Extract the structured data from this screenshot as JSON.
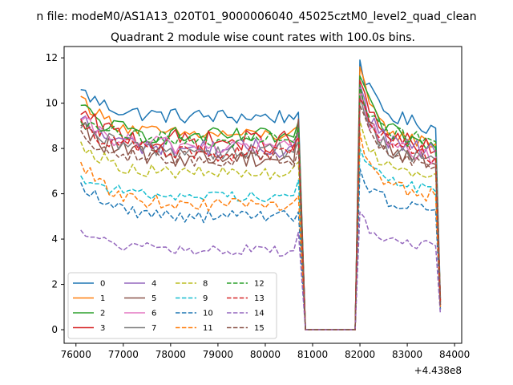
{
  "chart_data": {
    "type": "line",
    "title": "Quadrant 2 module wise count rates with 100.0s bins.",
    "suptitle": "n file: modeM0/AS1A13_020T01_9000006040_45025cztM0_level2_quad_clean",
    "xlabel": "",
    "ylabel": "",
    "x_offset_label": "+4.438e8",
    "xlim": [
      75750,
      84150
    ],
    "ylim": [
      -0.6,
      12.5
    ],
    "x_ticks": [
      76000,
      77000,
      78000,
      79000,
      80000,
      81000,
      82000,
      83000,
      84000
    ],
    "x_tick_labels": [
      "76000",
      "77000",
      "78000",
      "79000",
      "80000",
      "81000",
      "82000",
      "83000",
      "84000"
    ],
    "y_ticks": [
      0,
      2,
      4,
      6,
      8,
      10,
      12
    ],
    "y_tick_labels": [
      "0",
      "2",
      "4",
      "6",
      "8",
      "10",
      "12"
    ],
    "grid": false,
    "legend_placement": "lower-left",
    "legend_columns": 4,
    "x_segments": {
      "seg1": {
        "start": 76100,
        "end": 80700,
        "step": 100
      },
      "gap_zero": [
        80850,
        81000,
        81500,
        81900
      ],
      "seg2": {
        "start": 82000,
        "end": 83600,
        "step": 100
      },
      "drop": {
        "x": 83700
      }
    },
    "series": [
      {
        "name": "0",
        "color": "#1f77b4",
        "dash": "solid",
        "base1": 9.4,
        "start1": 10.6,
        "jitter": 0.35,
        "end1": 9.6,
        "peak2": 11.9,
        "base2": 9.6,
        "end2": 8.9,
        "drop_val": 1.4
      },
      {
        "name": "1",
        "color": "#ff7f0e",
        "dash": "solid",
        "base1": 8.6,
        "start1": 10.3,
        "jitter": 0.3,
        "end1": 9.0,
        "peak2": 11.6,
        "base2": 8.8,
        "end2": 8.2,
        "drop_val": 1.3
      },
      {
        "name": "2",
        "color": "#2ca02c",
        "dash": "solid",
        "base1": 8.5,
        "start1": 9.9,
        "jitter": 0.4,
        "end1": 9.2,
        "peak2": 11.2,
        "base2": 9.0,
        "end2": 8.0,
        "drop_val": 1.2
      },
      {
        "name": "3",
        "color": "#d62728",
        "dash": "solid",
        "base1": 8.3,
        "start1": 9.5,
        "jitter": 0.5,
        "end1": 8.8,
        "peak2": 11.0,
        "base2": 8.6,
        "end2": 7.9,
        "drop_val": 1.3
      },
      {
        "name": "4",
        "color": "#9467bd",
        "dash": "solid",
        "base1": 8.0,
        "start1": 9.3,
        "jitter": 0.45,
        "end1": 8.7,
        "peak2": 10.8,
        "base2": 8.4,
        "end2": 7.8,
        "drop_val": 1.2
      },
      {
        "name": "5",
        "color": "#8c564b",
        "dash": "solid",
        "base1": 7.6,
        "start1": 9.0,
        "jitter": 0.45,
        "end1": 9.3,
        "peak2": 10.6,
        "base2": 8.2,
        "end2": 7.3,
        "drop_val": 1.1
      },
      {
        "name": "6",
        "color": "#e377c2",
        "dash": "solid",
        "base1": 8.1,
        "start1": 9.2,
        "jitter": 0.4,
        "end1": 8.5,
        "peak2": 10.5,
        "base2": 8.3,
        "end2": 7.6,
        "drop_val": 1.2
      },
      {
        "name": "7",
        "color": "#7f7f7f",
        "dash": "solid",
        "base1": 7.9,
        "start1": 8.9,
        "jitter": 0.4,
        "end1": 8.3,
        "peak2": 10.3,
        "base2": 8.1,
        "end2": 7.5,
        "drop_val": 1.1
      },
      {
        "name": "8",
        "color": "#bcbd22",
        "dash": "dashed",
        "base1": 6.9,
        "start1": 8.3,
        "jitter": 0.3,
        "end1": 7.4,
        "peak2": 9.2,
        "base2": 7.3,
        "end2": 6.9,
        "drop_val": 1.0
      },
      {
        "name": "9",
        "color": "#17becf",
        "dash": "dashed",
        "base1": 5.9,
        "start1": 6.8,
        "jitter": 0.25,
        "end1": 6.6,
        "peak2": 8.0,
        "base2": 6.8,
        "end2": 6.1,
        "drop_val": 0.9
      },
      {
        "name": "10",
        "color": "#1f77b4",
        "dash": "dashed",
        "base1": 5.0,
        "start1": 6.5,
        "jitter": 0.3,
        "end1": 5.2,
        "peak2": 7.1,
        "base2": 5.8,
        "end2": 5.3,
        "drop_val": 0.9
      },
      {
        "name": "11",
        "color": "#ff7f0e",
        "dash": "dashed",
        "base1": 5.5,
        "start1": 7.4,
        "jitter": 0.3,
        "end1": 5.9,
        "peak2": 8.7,
        "base2": 6.4,
        "end2": 5.9,
        "drop_val": 1.0
      },
      {
        "name": "12",
        "color": "#2ca02c",
        "dash": "dashed",
        "base1": 8.4,
        "start1": 9.2,
        "jitter": 0.35,
        "end1": 8.9,
        "peak2": 10.8,
        "base2": 8.9,
        "end2": 8.3,
        "drop_val": 1.2
      },
      {
        "name": "13",
        "color": "#d62728",
        "dash": "dashed",
        "base1": 7.8,
        "start1": 9.3,
        "jitter": 0.4,
        "end1": 8.5,
        "peak2": 10.2,
        "base2": 8.3,
        "end2": 7.6,
        "drop_val": 1.1
      },
      {
        "name": "14",
        "color": "#9467bd",
        "dash": "dashed",
        "base1": 3.5,
        "start1": 4.4,
        "jitter": 0.25,
        "end1": 4.3,
        "peak2": 5.2,
        "base2": 3.9,
        "end2": 3.7,
        "drop_val": 0.7
      },
      {
        "name": "15",
        "color": "#8c564b",
        "dash": "dashed",
        "base1": 7.5,
        "start1": 8.8,
        "jitter": 0.35,
        "end1": 8.0,
        "peak2": 9.9,
        "base2": 8.0,
        "end2": 7.2,
        "drop_val": 1.0
      }
    ]
  }
}
